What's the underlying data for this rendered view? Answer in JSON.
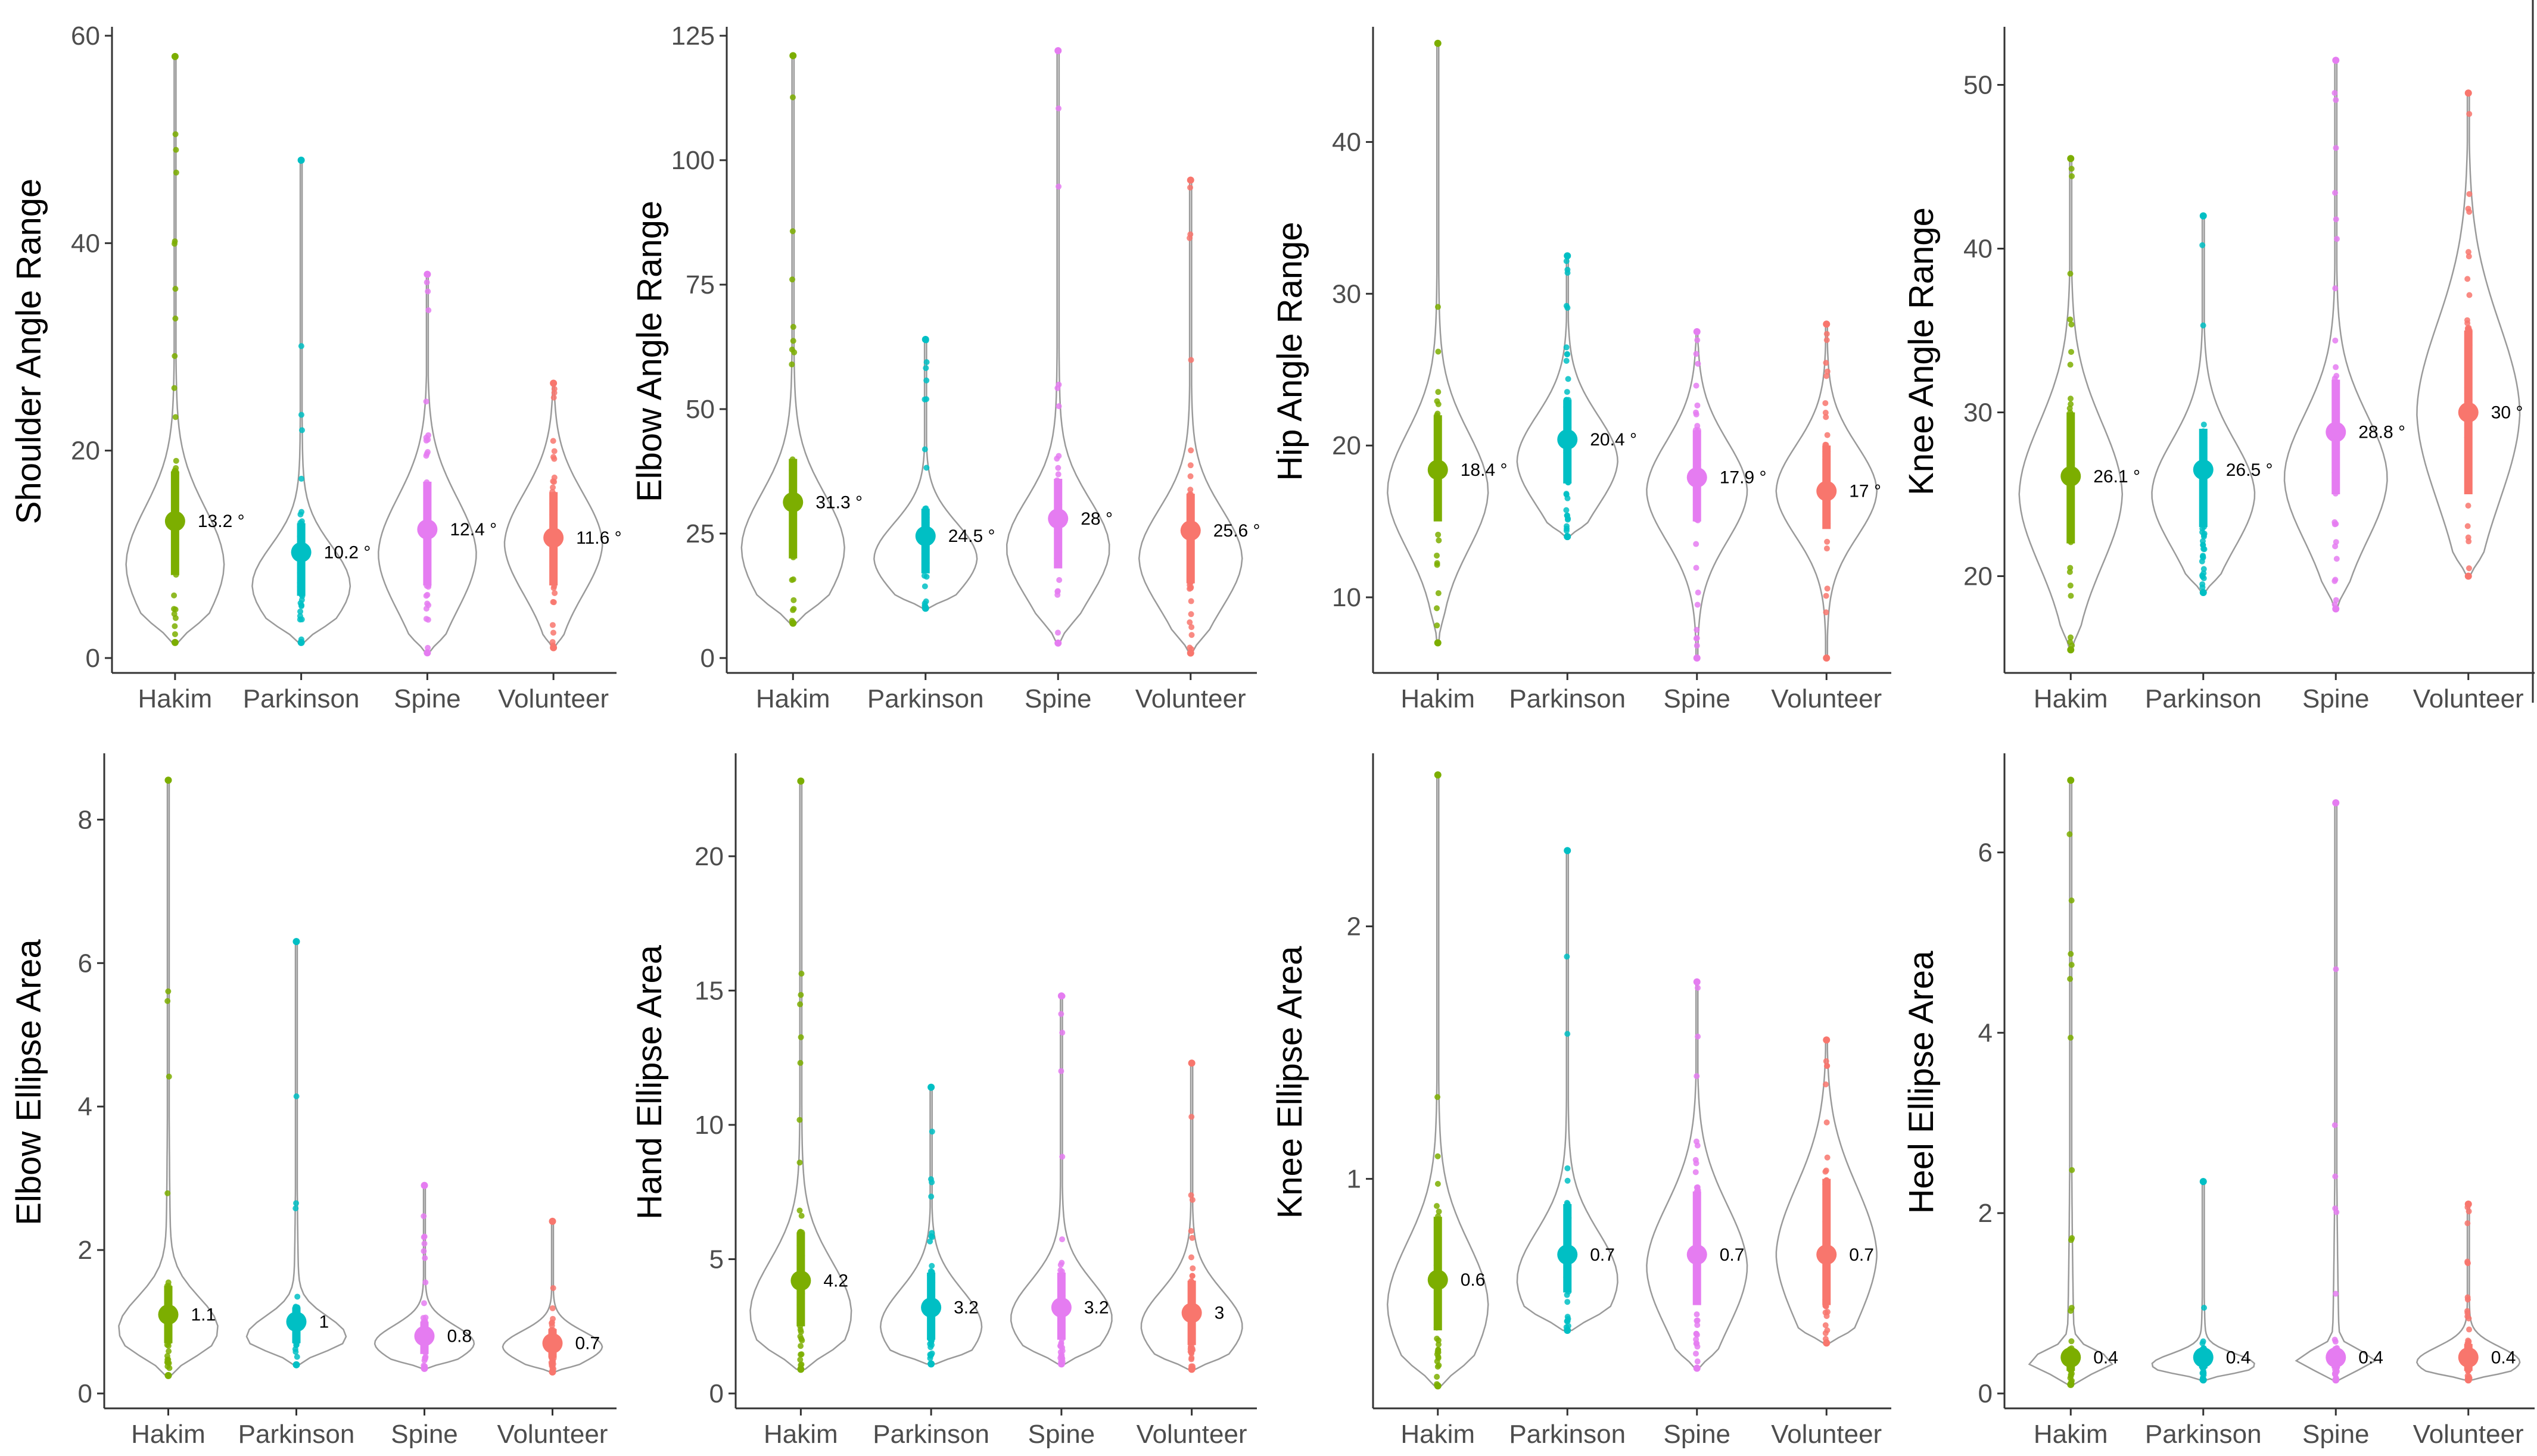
{
  "group_colors": {
    "Hakim": "#7CAE00",
    "Parkinson": "#00BFC4",
    "Spine": "#E57CF1",
    "Volunteer": "#F8766D"
  },
  "chart_data": [
    {
      "type": "violin",
      "ylabel": "Shoulder Angle Range",
      "categories": [
        "Hakim",
        "Parkinson",
        "Spine",
        "Volunteer"
      ],
      "ylim": [
        0,
        60
      ],
      "yticks": [
        0,
        20,
        40,
        60
      ],
      "series": [
        {
          "category": "Hakim",
          "mean": 13.2,
          "label": "13.2 °",
          "min": 1.5,
          "max": 58,
          "q1": 8,
          "q3": 18,
          "mode": 9
        },
        {
          "category": "Parkinson",
          "mean": 10.2,
          "label": "10.2 °",
          "min": 1.5,
          "max": 48,
          "q1": 6,
          "q3": 13,
          "mode": 7
        },
        {
          "category": "Spine",
          "mean": 12.4,
          "label": "12.4 °",
          "min": 0.5,
          "max": 37,
          "q1": 7,
          "q3": 17,
          "mode": 10
        },
        {
          "category": "Volunteer",
          "mean": 11.6,
          "label": "11.6 °",
          "min": 1.0,
          "max": 26.5,
          "q1": 7,
          "q3": 16,
          "mode": 11
        }
      ]
    },
    {
      "type": "violin",
      "ylabel": "Elbow Angle Range",
      "categories": [
        "Hakim",
        "Parkinson",
        "Spine",
        "Volunteer"
      ],
      "ylim": [
        0,
        125
      ],
      "yticks": [
        0,
        25,
        50,
        75,
        100,
        125
      ],
      "series": [
        {
          "category": "Hakim",
          "mean": 31.3,
          "label": "31.3 °",
          "min": 7,
          "max": 121,
          "q1": 20,
          "q3": 40,
          "mode": 22
        },
        {
          "category": "Parkinson",
          "mean": 24.5,
          "label": "24.5 °",
          "min": 10,
          "max": 64,
          "q1": 17,
          "q3": 30,
          "mode": 20
        },
        {
          "category": "Spine",
          "mean": 28,
          "label": "28 °",
          "min": 3,
          "max": 122,
          "q1": 18,
          "q3": 36,
          "mode": 22
        },
        {
          "category": "Volunteer",
          "mean": 25.6,
          "label": "25.6 °",
          "min": 1,
          "max": 96,
          "q1": 15,
          "q3": 33,
          "mode": 20
        }
      ]
    },
    {
      "type": "violin",
      "ylabel": "Hip Angle Range",
      "categories": [
        "Hakim",
        "Parkinson",
        "Spine",
        "Volunteer"
      ],
      "ylim": [
        6,
        47
      ],
      "yticks": [
        10,
        20,
        30,
        40
      ],
      "series": [
        {
          "category": "Hakim",
          "mean": 18.4,
          "label": "18.4 °",
          "min": 7,
          "max": 46.5,
          "q1": 15,
          "q3": 22,
          "mode": 17
        },
        {
          "category": "Parkinson",
          "mean": 20.4,
          "label": "20.4 °",
          "min": 14,
          "max": 32.5,
          "q1": 17.5,
          "q3": 23,
          "mode": 19
        },
        {
          "category": "Spine",
          "mean": 17.9,
          "label": "17.9 °",
          "min": 6,
          "max": 27.5,
          "q1": 15,
          "q3": 21,
          "mode": 17
        },
        {
          "category": "Volunteer",
          "mean": 17,
          "label": "17 °",
          "min": 6,
          "max": 28,
          "q1": 14.5,
          "q3": 20,
          "mode": 17
        }
      ]
    },
    {
      "type": "violin",
      "ylabel": "Knee Angle Range",
      "categories": [
        "Hakim",
        "Parkinson",
        "Spine",
        "Volunteer"
      ],
      "ylim": [
        15,
        53
      ],
      "yticks": [
        20,
        30,
        40,
        50
      ],
      "series": [
        {
          "category": "Hakim",
          "mean": 26.1,
          "label": "26.1 °",
          "min": 15.5,
          "max": 45.5,
          "q1": 22,
          "q3": 30,
          "mode": 25
        },
        {
          "category": "Parkinson",
          "mean": 26.5,
          "label": "26.5 °",
          "min": 19,
          "max": 42,
          "q1": 23,
          "q3": 29,
          "mode": 25
        },
        {
          "category": "Spine",
          "mean": 28.8,
          "label": "28.8 °",
          "min": 18,
          "max": 51.5,
          "q1": 25,
          "q3": 32,
          "mode": 26
        },
        {
          "category": "Volunteer",
          "mean": 30,
          "label": "30 °",
          "min": 20,
          "max": 49.5,
          "q1": 25,
          "q3": 35,
          "mode": 30
        }
      ]
    },
    {
      "type": "violin",
      "ylabel": "Elbow Ellipse Area",
      "categories": [
        "Hakim",
        "Parkinson",
        "Spine",
        "Volunteer"
      ],
      "ylim": [
        0,
        8.8
      ],
      "yticks": [
        0,
        2,
        4,
        6,
        8
      ],
      "series": [
        {
          "category": "Hakim",
          "mean": 1.1,
          "label": "1.1",
          "min": 0.25,
          "max": 8.55,
          "q1": 0.7,
          "q3": 1.5,
          "mode": 0.9
        },
        {
          "category": "Parkinson",
          "mean": 1,
          "label": "1",
          "min": 0.4,
          "max": 6.3,
          "q1": 0.7,
          "q3": 1.2,
          "mode": 0.8
        },
        {
          "category": "Spine",
          "mean": 0.8,
          "label": "0.8",
          "min": 0.35,
          "max": 2.9,
          "q1": 0.55,
          "q3": 1.0,
          "mode": 0.7
        },
        {
          "category": "Volunteer",
          "mean": 0.7,
          "label": "0.7",
          "min": 0.3,
          "max": 2.4,
          "q1": 0.5,
          "q3": 0.9,
          "mode": 0.65
        }
      ]
    },
    {
      "type": "violin",
      "ylabel": "Hand Ellipse Area",
      "categories": [
        "Hakim",
        "Parkinson",
        "Spine",
        "Volunteer"
      ],
      "ylim": [
        0,
        23.5
      ],
      "yticks": [
        0,
        5,
        10,
        15,
        20
      ],
      "series": [
        {
          "category": "Hakim",
          "mean": 4.2,
          "label": "4.2",
          "min": 0.9,
          "max": 22.8,
          "q1": 2.5,
          "q3": 6,
          "mode": 3
        },
        {
          "category": "Parkinson",
          "mean": 3.2,
          "label": "3.2",
          "min": 1.1,
          "max": 11.4,
          "q1": 2,
          "q3": 4.5,
          "mode": 2.5
        },
        {
          "category": "Spine",
          "mean": 3.2,
          "label": "3.2",
          "min": 1.1,
          "max": 14.8,
          "q1": 2,
          "q3": 4.5,
          "mode": 2.8
        },
        {
          "category": "Volunteer",
          "mean": 3,
          "label": "3",
          "min": 0.9,
          "max": 12.3,
          "q1": 1.8,
          "q3": 4.2,
          "mode": 2.5
        }
      ]
    },
    {
      "type": "violin",
      "ylabel": "Knee Ellipse Area",
      "categories": [
        "Hakim",
        "Parkinson",
        "Spine",
        "Volunteer"
      ],
      "ylim": [
        0.15,
        2.65
      ],
      "yticks": [
        1,
        2
      ],
      "series": [
        {
          "category": "Hakim",
          "mean": 0.6,
          "label": "0.6",
          "min": 0.18,
          "max": 2.6,
          "q1": 0.4,
          "q3": 0.85,
          "mode": 0.5
        },
        {
          "category": "Parkinson",
          "mean": 0.7,
          "label": "0.7",
          "min": 0.4,
          "max": 2.3,
          "q1": 0.55,
          "q3": 0.9,
          "mode": 0.6
        },
        {
          "category": "Spine",
          "mean": 0.7,
          "label": "0.7",
          "min": 0.25,
          "max": 1.78,
          "q1": 0.5,
          "q3": 0.95,
          "mode": 0.65
        },
        {
          "category": "Volunteer",
          "mean": 0.7,
          "label": "0.7",
          "min": 0.35,
          "max": 1.55,
          "q1": 0.5,
          "q3": 1.0,
          "mode": 0.7
        }
      ]
    },
    {
      "type": "violin",
      "ylabel": "Heel Ellipse Area",
      "categories": [
        "Hakim",
        "Parkinson",
        "Spine",
        "Volunteer"
      ],
      "ylim": [
        0,
        7
      ],
      "yticks": [
        0,
        2,
        4,
        6
      ],
      "series": [
        {
          "category": "Hakim",
          "mean": 0.4,
          "label": "0.4",
          "min": 0.1,
          "max": 6.8,
          "q1": 0.25,
          "q3": 0.5,
          "mode": 0.3
        },
        {
          "category": "Parkinson",
          "mean": 0.4,
          "label": "0.4",
          "min": 0.15,
          "max": 2.35,
          "q1": 0.28,
          "q3": 0.5,
          "mode": 0.32
        },
        {
          "category": "Spine",
          "mean": 0.4,
          "label": "0.4",
          "min": 0.15,
          "max": 6.55,
          "q1": 0.28,
          "q3": 0.5,
          "mode": 0.32
        },
        {
          "category": "Volunteer",
          "mean": 0.4,
          "label": "0.4",
          "min": 0.15,
          "max": 2.1,
          "q1": 0.25,
          "q3": 0.55,
          "mode": 0.35
        }
      ]
    }
  ]
}
